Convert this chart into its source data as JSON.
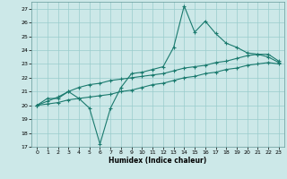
{
  "xlabel": "Humidex (Indice chaleur)",
  "background_color": "#cce8e8",
  "grid_color": "#99cccc",
  "line_color": "#1a7a6e",
  "xlim": [
    -0.5,
    23.5
  ],
  "ylim": [
    17,
    27.5
  ],
  "yticks": [
    17,
    18,
    19,
    20,
    21,
    22,
    23,
    24,
    25,
    26,
    27
  ],
  "xticks": [
    0,
    1,
    2,
    3,
    4,
    5,
    6,
    7,
    8,
    9,
    10,
    11,
    12,
    13,
    14,
    15,
    16,
    17,
    18,
    19,
    20,
    21,
    22,
    23
  ],
  "series1_x": [
    0,
    1,
    2,
    3,
    4,
    5,
    6,
    7,
    8,
    9,
    10,
    11,
    12,
    13,
    14,
    15,
    16,
    17,
    18,
    19,
    20,
    21,
    22,
    23
  ],
  "series1_y": [
    20.0,
    20.5,
    20.5,
    21.0,
    20.5,
    19.8,
    17.2,
    19.8,
    21.3,
    22.3,
    22.4,
    22.6,
    22.8,
    24.2,
    27.2,
    25.3,
    26.1,
    25.2,
    24.5,
    24.2,
    23.8,
    23.7,
    23.5,
    23.1
  ],
  "series2_x": [
    0,
    1,
    2,
    3,
    4,
    5,
    6,
    7,
    8,
    9,
    10,
    11,
    12,
    13,
    14,
    15,
    16,
    17,
    18,
    19,
    20,
    21,
    22,
    23
  ],
  "series2_y": [
    20.0,
    20.3,
    20.6,
    21.0,
    21.3,
    21.5,
    21.6,
    21.8,
    21.9,
    22.0,
    22.1,
    22.2,
    22.3,
    22.5,
    22.7,
    22.8,
    22.9,
    23.1,
    23.2,
    23.4,
    23.6,
    23.7,
    23.7,
    23.2
  ],
  "series3_x": [
    0,
    1,
    2,
    3,
    4,
    5,
    6,
    7,
    8,
    9,
    10,
    11,
    12,
    13,
    14,
    15,
    16,
    17,
    18,
    19,
    20,
    21,
    22,
    23
  ],
  "series3_y": [
    20.0,
    20.1,
    20.2,
    20.4,
    20.5,
    20.6,
    20.7,
    20.8,
    21.0,
    21.1,
    21.3,
    21.5,
    21.6,
    21.8,
    22.0,
    22.1,
    22.3,
    22.4,
    22.6,
    22.7,
    22.9,
    23.0,
    23.1,
    23.0
  ]
}
